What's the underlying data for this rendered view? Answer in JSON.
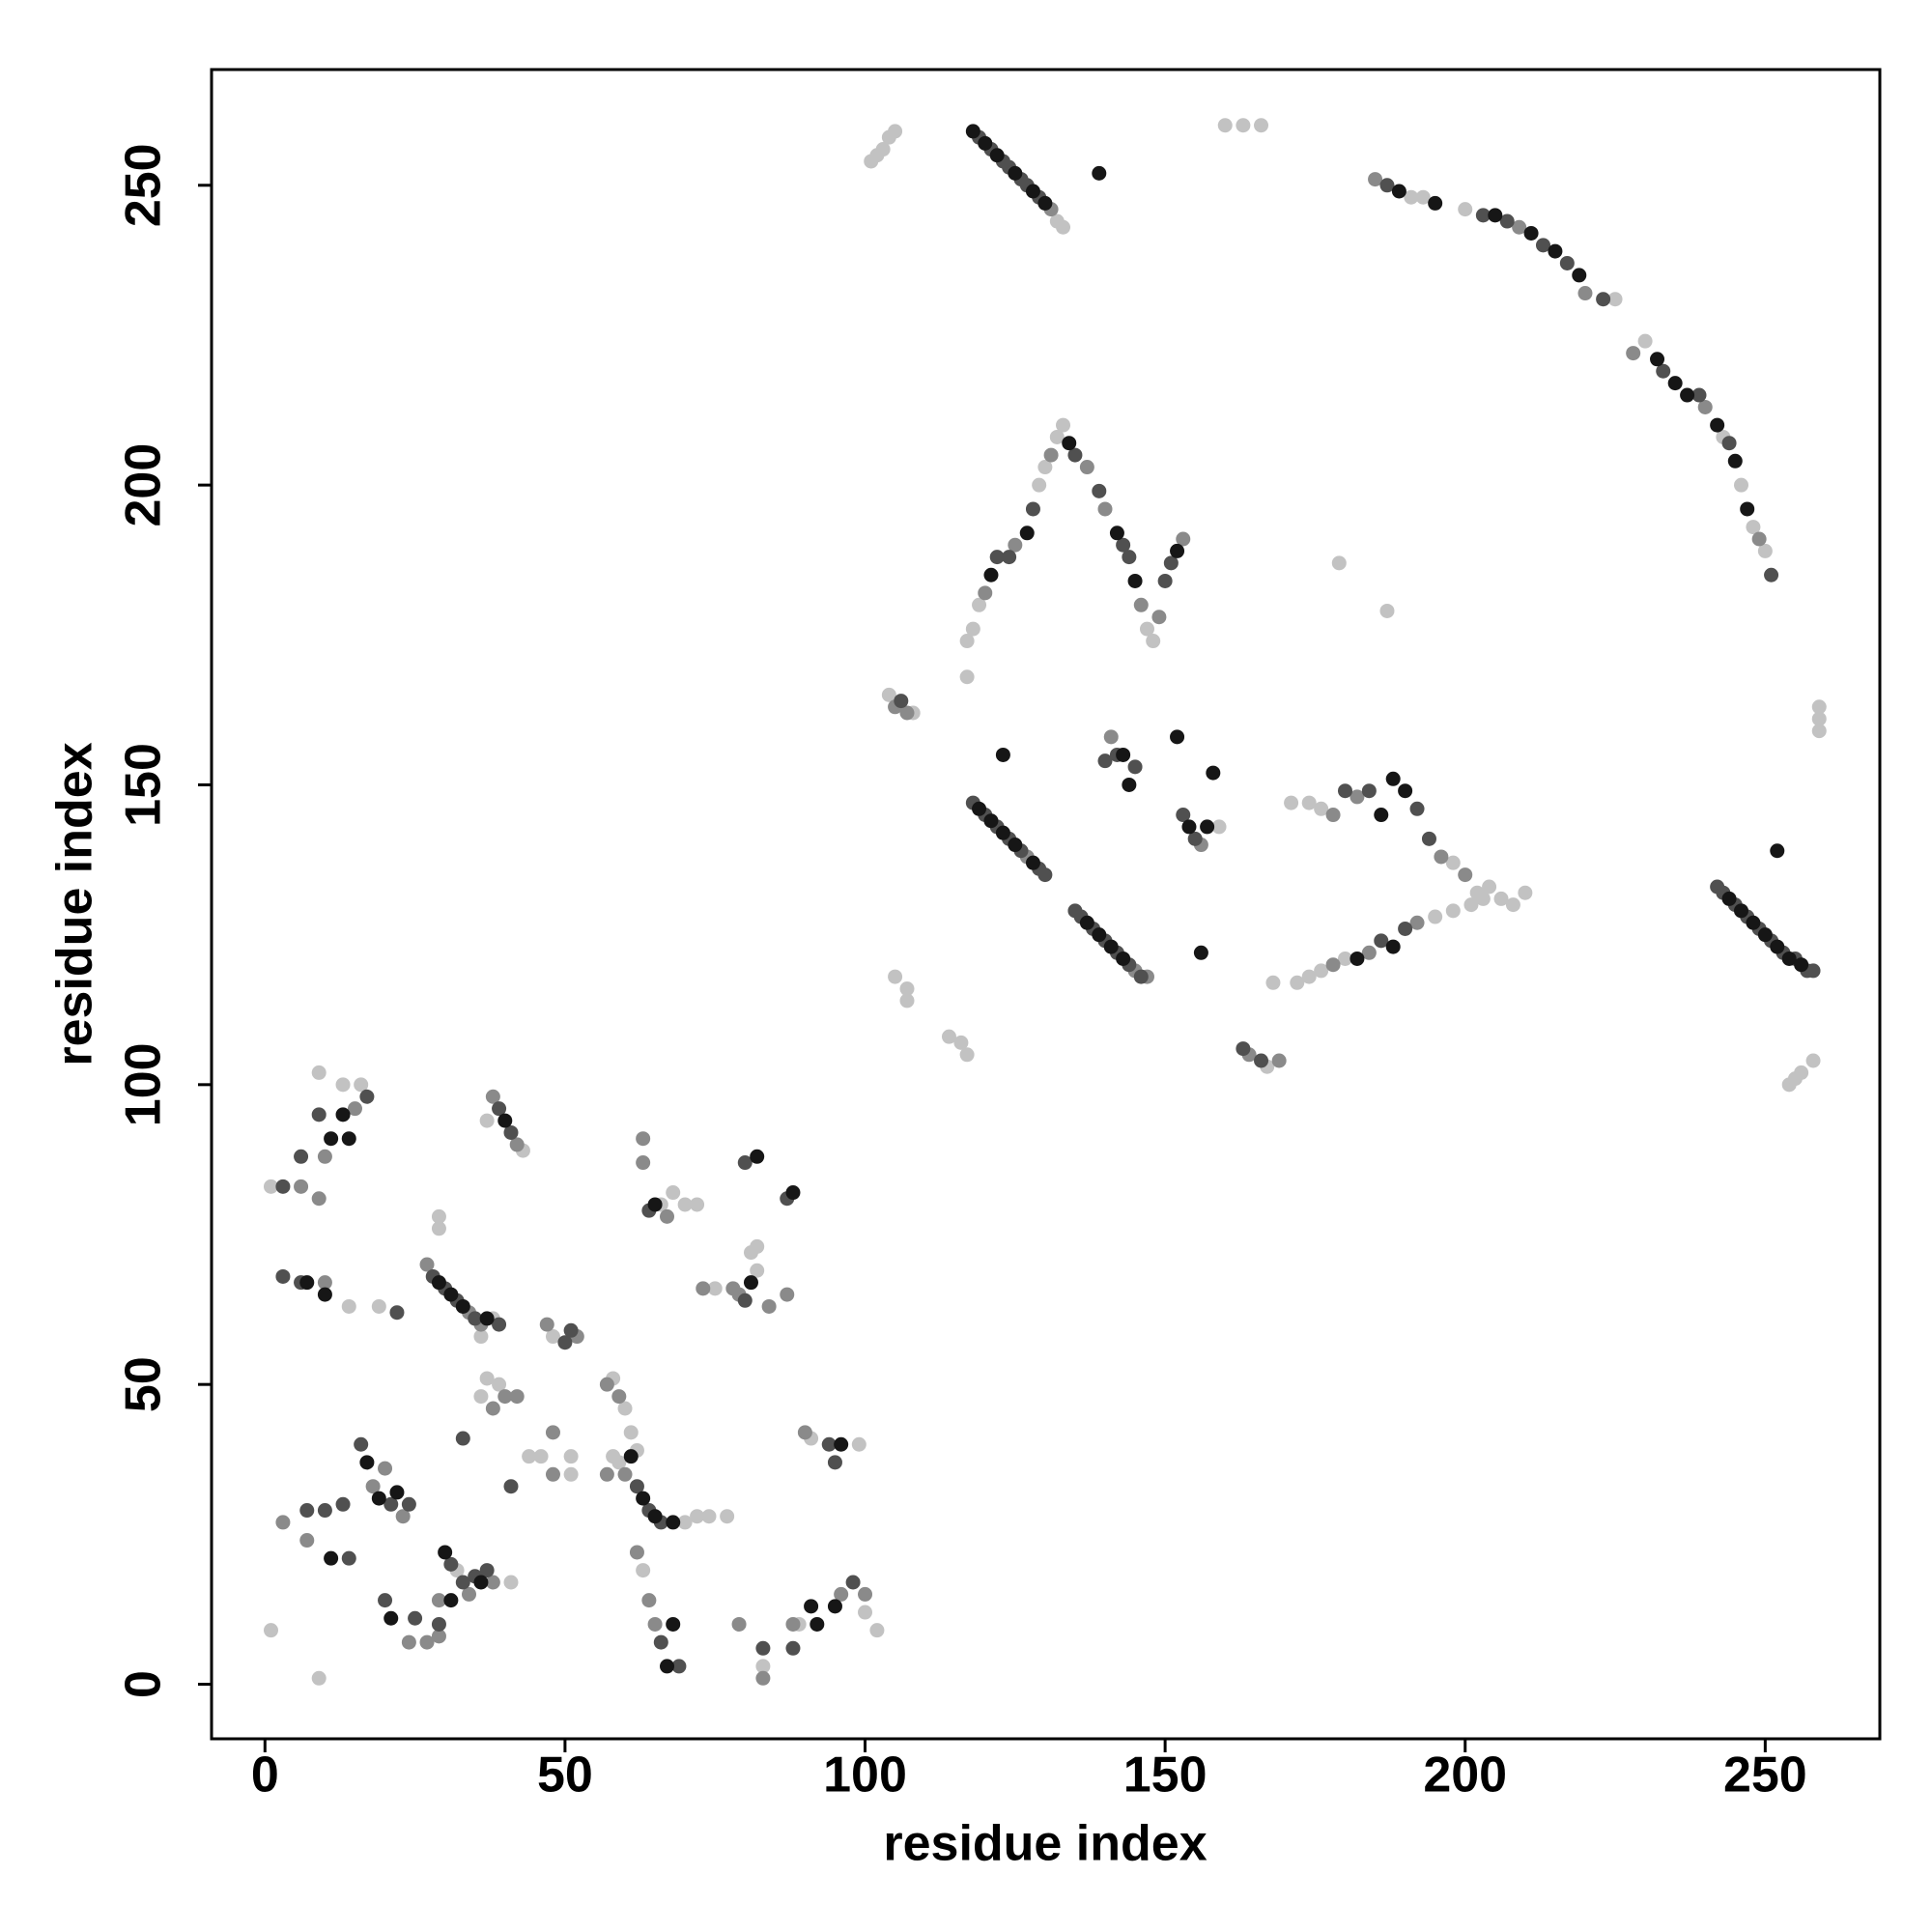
{
  "chart_data": {
    "type": "scatter",
    "x_label": "residue index",
    "y_label": "residue index",
    "xlim": [
      -8.9,
      269.1
    ],
    "ylim": [
      -9.1,
      269.3
    ],
    "xticks": [
      0,
      50,
      100,
      150,
      200,
      250
    ],
    "yticks": [
      0,
      50,
      100,
      150,
      200,
      250
    ],
    "grid": false,
    "series": [
      {
        "color": "#c2c2c2",
        "x": [
          132,
          133,
          101,
          102,
          103,
          104,
          105,
          160,
          163,
          166,
          191,
          193,
          200,
          225,
          230,
          243,
          246,
          248,
          250,
          117,
          117,
          118,
          119,
          129,
          130,
          132,
          133,
          147,
          148,
          104,
          108,
          171,
          174,
          176,
          198,
          202,
          204,
          206,
          208,
          210,
          172,
          174,
          176,
          180,
          195,
          198,
          201,
          203,
          168,
          167,
          254,
          255,
          256,
          258,
          259,
          259,
          259,
          179,
          187,
          105,
          107,
          107,
          114,
          116,
          117,
          159,
          1,
          9,
          13,
          16,
          14,
          19,
          29,
          29,
          37,
          43,
          48,
          36,
          37,
          39,
          44,
          46,
          51,
          51,
          58,
          60,
          58,
          59,
          70,
          72,
          74,
          77,
          61,
          62,
          63,
          66,
          68,
          70,
          72,
          75,
          81,
          82,
          82,
          89,
          91,
          99,
          100,
          102,
          1,
          9,
          32,
          41,
          83,
          38,
          36
        ],
        "values": [
          244,
          243,
          254,
          255,
          256,
          258,
          259,
          260,
          260,
          260,
          248,
          248,
          246,
          231,
          224,
          208,
          200,
          193,
          189,
          168,
          174,
          176,
          180,
          200,
          203,
          208,
          210,
          176,
          174,
          165,
          162,
          147,
          147,
          146,
          137,
          132,
          133,
          131,
          130,
          132,
          117,
          118,
          119,
          121,
          128,
          129,
          130,
          131,
          117,
          103,
          100,
          101,
          102,
          104,
          163,
          159,
          161,
          187,
          179,
          118,
          116,
          114,
          108,
          107,
          105,
          143,
          83,
          102,
          100,
          100,
          63,
          63,
          78,
          76,
          94,
          89,
          58,
          48,
          51,
          50,
          38,
          38,
          38,
          35,
          51,
          46,
          38,
          37,
          27,
          28,
          28,
          28,
          42,
          39,
          19,
          80,
          82,
          80,
          80,
          66,
          72,
          73,
          69,
          10,
          41,
          40,
          12,
          9,
          9,
          1,
          19,
          17,
          3,
          61,
          58
        ]
      },
      {
        "color": "#8a8a8a",
        "x": [
          131,
          185,
          209,
          220,
          228,
          240,
          249,
          120,
          125,
          131,
          137,
          140,
          146,
          149,
          153,
          127,
          145,
          147,
          141,
          156,
          178,
          182,
          196,
          200,
          184,
          192,
          178,
          164,
          169,
          107,
          105,
          6,
          10,
          15,
          9,
          10,
          27,
          34,
          36,
          38,
          42,
          47,
          52,
          57,
          59,
          38,
          40,
          42,
          48,
          48,
          57,
          60,
          62,
          65,
          63,
          67,
          73,
          78,
          79,
          84,
          87,
          79,
          83,
          88,
          90,
          96,
          100,
          18,
          20,
          23,
          24,
          27,
          29,
          29,
          34,
          38,
          3,
          7,
          63,
          64
        ],
        "values": [
          246,
          251,
          243,
          232,
          222,
          213,
          191,
          182,
          190,
          205,
          203,
          196,
          180,
          178,
          191,
          138,
          119,
          118,
          158,
          140,
          145,
          148,
          138,
          135,
          122,
          127,
          120,
          105,
          104,
          162,
          163,
          83,
          88,
          96,
          81,
          67,
          70,
          62,
          60,
          98,
          90,
          60,
          58,
          50,
          48,
          46,
          48,
          48,
          42,
          35,
          35,
          35,
          22,
          10,
          87,
          78,
          66,
          66,
          65,
          63,
          65,
          10,
          1,
          10,
          42,
          15,
          15,
          33,
          36,
          28,
          7,
          7,
          8,
          14,
          15,
          17,
          27,
          24,
          91,
          14
        ]
      },
      {
        "color": "#505050",
        "x": [
          119,
          121,
          123,
          124,
          126,
          127,
          129,
          187,
          203,
          207,
          213,
          217,
          223,
          233,
          239,
          244,
          251,
          122,
          124,
          128,
          135,
          139,
          143,
          144,
          150,
          151,
          118,
          120,
          122,
          124,
          126,
          129,
          130,
          135,
          136,
          138,
          140,
          142,
          144,
          146,
          140,
          142,
          145,
          153,
          155,
          180,
          184,
          192,
          194,
          186,
          190,
          242,
          243,
          245,
          247,
          249,
          251,
          253,
          255,
          257,
          258,
          163,
          166,
          106,
          3,
          6,
          9,
          17,
          3,
          6,
          22,
          28,
          30,
          32,
          35,
          39,
          39,
          41,
          50,
          51,
          62,
          64,
          66,
          64,
          66,
          69,
          80,
          80,
          87,
          83,
          88,
          94,
          95,
          98,
          13,
          16,
          21,
          24,
          20,
          25,
          29,
          31,
          33,
          35,
          37,
          41,
          33,
          7,
          10,
          14
        ],
        "values": [
          258,
          256,
          254,
          253,
          251,
          250,
          248,
          250,
          245,
          244,
          240,
          237,
          231,
          219,
          215,
          207,
          185,
          188,
          188,
          196,
          205,
          199,
          190,
          188,
          184,
          187,
          147,
          145,
          143,
          141,
          139,
          136,
          135,
          129,
          128,
          126,
          124,
          122,
          120,
          118,
          154,
          155,
          153,
          145,
          141,
          149,
          149,
          146,
          141,
          124,
          126,
          133,
          132,
          130,
          128,
          126,
          124,
          122,
          121,
          119,
          119,
          106,
          104,
          164,
          83,
          88,
          95,
          98,
          68,
          67,
          62,
          68,
          66,
          64,
          61,
          60,
          96,
          92,
          57,
          59,
          33,
          29,
          27,
          79,
          7,
          3,
          64,
          87,
          81,
          6,
          6,
          40,
          37,
          17,
          30,
          40,
          30,
          30,
          14,
          11,
          10,
          20,
          17,
          18,
          19,
          33,
          41,
          29,
          29,
          21
        ]
      },
      {
        "color": "#161616",
        "x": [
          118,
          120,
          122,
          125,
          128,
          130,
          139,
          189,
          195,
          205,
          211,
          215,
          219,
          232,
          235,
          237,
          242,
          245,
          247,
          121,
          127,
          134,
          142,
          145,
          152,
          119,
          121,
          123,
          125,
          128,
          123,
          137,
          139,
          141,
          143,
          156,
          144,
          143,
          152,
          158,
          154,
          157,
          186,
          188,
          190,
          188,
          182,
          244,
          246,
          248,
          250,
          252,
          254,
          256,
          252,
          11,
          14,
          13,
          7,
          10,
          29,
          31,
          33,
          37,
          40,
          61,
          63,
          65,
          68,
          65,
          67,
          68,
          81,
          88,
          91,
          92,
          95,
          96,
          17,
          19,
          22,
          11,
          21,
          30,
          31,
          36,
          82
        ],
        "values": [
          259,
          257,
          255,
          252,
          249,
          247,
          252,
          249,
          247,
          245,
          242,
          239,
          235,
          221,
          217,
          215,
          210,
          204,
          196,
          185,
          192,
          207,
          192,
          184,
          189,
          146,
          144,
          142,
          140,
          137,
          155,
          127,
          125,
          123,
          121,
          122,
          150,
          155,
          158,
          152,
          143,
          143,
          145,
          151,
          149,
          123,
          121,
          131,
          129,
          127,
          125,
          123,
          121,
          120,
          139,
          91,
          91,
          95,
          67,
          65,
          67,
          65,
          63,
          61,
          94,
          38,
          31,
          28,
          27,
          80,
          3,
          10,
          67,
          82,
          13,
          10,
          13,
          40,
          37,
          31,
          32,
          21,
          11,
          22,
          14,
          17,
          88
        ]
      }
    ]
  }
}
